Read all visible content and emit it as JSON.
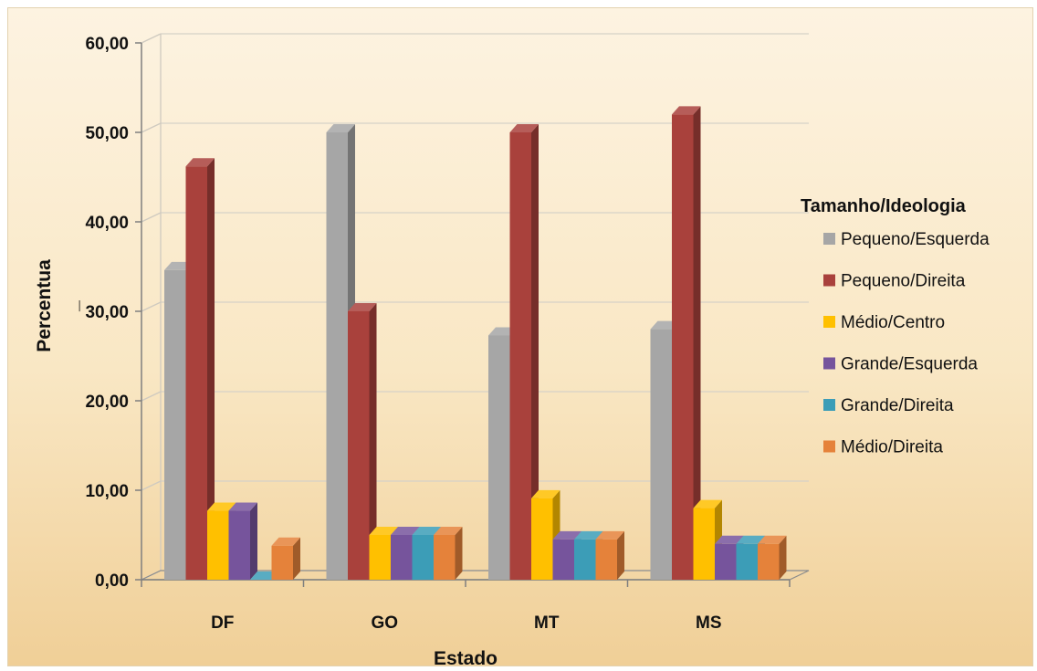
{
  "chart_data": {
    "type": "bar",
    "style": "3d-clustered-column",
    "categories": [
      "DF",
      "GO",
      "MT",
      "MS"
    ],
    "series": [
      {
        "name": "Pequeno/Esquerda",
        "color": "#a6a6a6",
        "values": [
          34.6,
          50.0,
          27.3,
          28.0
        ]
      },
      {
        "name": "Pequeno/Direita",
        "color": "#a9413c",
        "values": [
          46.2,
          30.0,
          50.0,
          52.0
        ]
      },
      {
        "name": "Médio/Centro",
        "color": "#ffc000",
        "values": [
          7.7,
          5.0,
          9.1,
          8.0
        ]
      },
      {
        "name": "Grande/Esquerda",
        "color": "#76549c",
        "values": [
          7.7,
          5.0,
          4.5,
          4.0
        ]
      },
      {
        "name": "Grande/Direita",
        "color": "#3c9db7",
        "values": [
          0.0,
          5.0,
          4.5,
          4.0
        ]
      },
      {
        "name": "Médio/Direita",
        "color": "#e5823a",
        "values": [
          3.8,
          5.0,
          4.5,
          4.0
        ]
      }
    ],
    "xlabel": "Estado",
    "ylabel": "Percentua\n_",
    "ylim": [
      0,
      60
    ],
    "yticks": [
      "0,00",
      "10,00",
      "20,00",
      "30,00",
      "40,00",
      "50,00",
      "60,00"
    ],
    "grid": true,
    "legend_title": "Tamanho/Ideologia",
    "legend_position": "right"
  }
}
